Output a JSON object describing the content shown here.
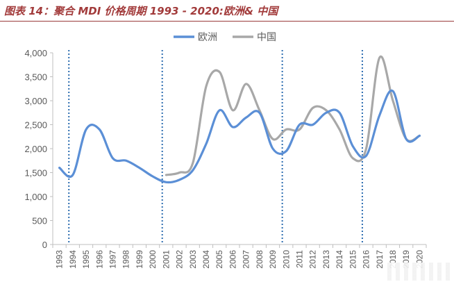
{
  "header": {
    "title": "图表 14：聚合 MDI 价格周期 1993 - 2020:欧洲& 中国"
  },
  "colors": {
    "title": "#a23b3b",
    "europe": "#5b8fd6",
    "china": "#a8a8a8",
    "cycle_line": "#2b6cb0",
    "axis_text": "#595959"
  },
  "chart_data": {
    "type": "line",
    "title": "",
    "xlabel": "",
    "ylabel": "",
    "x": [
      "1993",
      "1994",
      "1995",
      "1996",
      "1997",
      "1998",
      "1999",
      "2000",
      "2001",
      "2002",
      "2003",
      "2004",
      "2005",
      "2006",
      "2007",
      "2008",
      "2009",
      "2010",
      "2011",
      "2012",
      "2013",
      "2014",
      "2015",
      "2016",
      "2017",
      "2018",
      "2019",
      "2020"
    ],
    "ylim": [
      0,
      4000
    ],
    "yticks": [
      "0",
      "500",
      "1,000",
      "1,500",
      "2,000",
      "2,500",
      "3,000",
      "3,500",
      "4,000"
    ],
    "ytick_values": [
      0,
      500,
      1000,
      1500,
      2000,
      2500,
      3000,
      3500,
      4000
    ],
    "legend_position": "top-center",
    "cycle_markers": [
      "1994",
      "2001",
      "2010",
      "2016"
    ],
    "series": [
      {
        "name": "欧洲",
        "color": "#5b8fd6",
        "values": [
          1600,
          1450,
          2400,
          2400,
          1800,
          1750,
          1600,
          1420,
          1300,
          1350,
          1550,
          2100,
          2800,
          2450,
          2650,
          2750,
          2000,
          1950,
          2500,
          2500,
          2750,
          2750,
          2050,
          1850,
          2700,
          3200,
          2200,
          2270
        ]
      },
      {
        "name": "中国",
        "color": "#a8a8a8",
        "values": [
          null,
          null,
          null,
          null,
          null,
          null,
          null,
          null,
          1450,
          1500,
          1700,
          3300,
          3600,
          2800,
          3350,
          2800,
          2200,
          2400,
          2400,
          2850,
          2800,
          2400,
          1800,
          2000,
          3900,
          3000,
          2200,
          2270
        ]
      }
    ]
  }
}
